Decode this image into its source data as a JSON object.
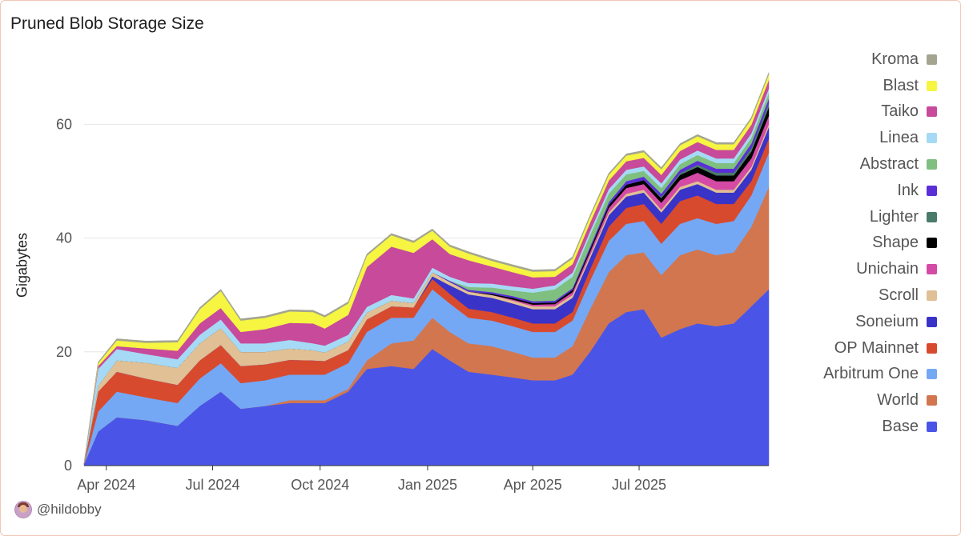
{
  "chart_data": {
    "type": "area",
    "stacked": true,
    "title": "Pruned Blob Storage Size",
    "ylabel": "Gigabytes",
    "xlabel": "",
    "ylim": [
      0,
      72
    ],
    "yticks": [
      0,
      20,
      40,
      60
    ],
    "xlim": [
      "2024-03-13",
      "2025-10-20"
    ],
    "xticks": [
      {
        "date": "2024-04-01",
        "label": "Apr 2024"
      },
      {
        "date": "2024-07-01",
        "label": "Jul 2024"
      },
      {
        "date": "2024-10-01",
        "label": "Oct 2024"
      },
      {
        "date": "2025-01-01",
        "label": "Jan 2025"
      },
      {
        "date": "2025-04-01",
        "label": "Apr 2025"
      },
      {
        "date": "2025-07-01",
        "label": "Jul 2025"
      }
    ],
    "grid": true,
    "legend_position": "right",
    "x": [
      "2024-03-13",
      "2024-03-25",
      "2024-04-10",
      "2024-05-05",
      "2024-06-01",
      "2024-06-20",
      "2024-07-08",
      "2024-07-25",
      "2024-08-15",
      "2024-09-05",
      "2024-09-25",
      "2024-10-05",
      "2024-10-25",
      "2024-11-10",
      "2024-12-01",
      "2024-12-20",
      "2025-01-05",
      "2025-01-20",
      "2025-02-05",
      "2025-02-25",
      "2025-03-15",
      "2025-04-01",
      "2025-04-20",
      "2025-05-05",
      "2025-05-20",
      "2025-06-05",
      "2025-06-20",
      "2025-07-05",
      "2025-07-20",
      "2025-08-05",
      "2025-08-20",
      "2025-09-05",
      "2025-09-20",
      "2025-10-05",
      "2025-10-20"
    ],
    "series": [
      {
        "name": "Base",
        "color": "#4a55e8",
        "values": [
          0.3,
          6,
          8.5,
          8,
          7,
          10.5,
          13,
          10,
          10.5,
          11,
          11,
          11,
          13,
          17,
          17.5,
          17,
          20.5,
          18.5,
          16.5,
          16,
          15.5,
          15,
          15,
          16,
          20,
          25,
          27,
          27.5,
          22.5,
          24,
          25,
          24.5,
          25,
          28,
          31
        ]
      },
      {
        "name": "World",
        "color": "#d2764f",
        "values": [
          0,
          0,
          0,
          0,
          0,
          0,
          0,
          0,
          0,
          0.5,
          0.5,
          0.5,
          0.5,
          1.5,
          4,
          5,
          5.5,
          5,
          5,
          5,
          4.5,
          4,
          4,
          5,
          7.5,
          9,
          10,
          10,
          11,
          13,
          13,
          12.5,
          12.5,
          14,
          18
        ]
      },
      {
        "name": "Arbitrum One",
        "color": "#74a8f5",
        "values": [
          0,
          3.5,
          4.5,
          4,
          4,
          4.8,
          5,
          4.5,
          4.5,
          4.5,
          4.5,
          4.5,
          4.5,
          5,
          4.5,
          4,
          5,
          5,
          4.5,
          4.5,
          4.5,
          4.5,
          4.5,
          4.5,
          5,
          5.5,
          5.5,
          5.5,
          5.5,
          5.5,
          5.5,
          5.5,
          5.5,
          5.5,
          6
        ]
      },
      {
        "name": "OP Mainnet",
        "color": "#d84a2e",
        "values": [
          0.1,
          3.5,
          3.5,
          3.3,
          3.2,
          3.2,
          3.2,
          3,
          2.8,
          2.6,
          2.5,
          2.4,
          2.3,
          2.2,
          2,
          1.8,
          1.8,
          1.7,
          1.6,
          1.5,
          1.5,
          1.5,
          1.5,
          1.5,
          2,
          2.5,
          2.8,
          3,
          3.5,
          4,
          4,
          3.5,
          3,
          2.5,
          2.5
        ]
      },
      {
        "name": "Soneium",
        "color": "#3a33c8",
        "values": [
          0,
          0,
          0,
          0,
          0,
          0,
          0,
          0,
          0,
          0,
          0,
          0,
          0,
          0,
          0,
          0,
          0.5,
          1.5,
          2.5,
          2.5,
          2.5,
          2.5,
          2.5,
          2.5,
          2,
          2,
          2,
          2,
          2,
          2,
          2,
          2,
          2,
          2,
          2
        ]
      },
      {
        "name": "Scroll",
        "color": "#e0c094",
        "values": [
          0,
          1,
          2,
          2.8,
          3,
          3,
          3,
          2.5,
          2.2,
          2,
          1.8,
          1.5,
          1.5,
          1.2,
          1,
          0.8,
          0.7,
          0.6,
          0.5,
          0.5,
          0.5,
          0.5,
          0.5,
          0.5,
          0.5,
          0.5,
          0.5,
          0.5,
          0.5,
          0.5,
          0.5,
          0.5,
          0.5,
          0.5,
          0.5
        ]
      },
      {
        "name": "Unichain",
        "color": "#d44aa5",
        "values": [
          0,
          0,
          0,
          0,
          0,
          0,
          0,
          0,
          0,
          0,
          0,
          0,
          0,
          0,
          0,
          0,
          0,
          0,
          0,
          0,
          0.2,
          0.3,
          0.4,
          0.5,
          0.6,
          0.8,
          1,
          1,
          1.2,
          1.2,
          1.5,
          1.5,
          1.5,
          1.5,
          1.5
        ]
      },
      {
        "name": "Shape",
        "color": "#000000",
        "values": [
          0,
          0,
          0,
          0,
          0,
          0,
          0,
          0,
          0,
          0,
          0,
          0,
          0,
          0,
          0,
          0,
          0,
          0,
          0,
          0.2,
          0.3,
          0.3,
          0.3,
          0.4,
          0.5,
          0.5,
          0.6,
          0.7,
          0.8,
          0.9,
          1,
          1,
          1,
          1.2,
          1.5
        ]
      },
      {
        "name": "Lighter",
        "color": "#4a7b6a",
        "values": [
          0,
          0,
          0,
          0,
          0,
          0,
          0,
          0,
          0,
          0,
          0,
          0,
          0,
          0,
          0,
          0,
          0,
          0,
          0,
          0,
          0,
          0,
          0,
          0,
          0,
          0,
          0,
          0,
          0.2,
          0.3,
          0.4,
          0.5,
          0.5,
          0.6,
          0.7
        ]
      },
      {
        "name": "Ink",
        "color": "#5a2fd8",
        "values": [
          0,
          0,
          0,
          0,
          0,
          0,
          0,
          0,
          0,
          0,
          0,
          0,
          0,
          0,
          0,
          0,
          0,
          0.2,
          0.3,
          0.3,
          0.3,
          0.3,
          0.3,
          0.3,
          0.4,
          0.5,
          0.6,
          0.6,
          0.6,
          0.6,
          0.7,
          0.7,
          0.7,
          0.8,
          0.8
        ]
      },
      {
        "name": "Abstract",
        "color": "#7fbf7f",
        "values": [
          0,
          0,
          0,
          0,
          0,
          0,
          0,
          0,
          0,
          0,
          0,
          0,
          0,
          0,
          0,
          0,
          0,
          0,
          0.5,
          0.8,
          1,
          1.5,
          2,
          2,
          2,
          1.5,
          1.2,
          1,
          1,
          1,
          1,
          1,
          1,
          1,
          1
        ]
      },
      {
        "name": "Linea",
        "color": "#a6d9f5",
        "values": [
          0,
          3,
          2,
          1.5,
          1.5,
          1.5,
          1.5,
          1.5,
          1.5,
          1.5,
          1.2,
          1.2,
          1.2,
          1,
          1,
          0.8,
          0.8,
          0.7,
          0.7,
          0.7,
          0.7,
          0.7,
          0.7,
          0.7,
          0.7,
          0.8,
          0.8,
          0.8,
          0.8,
          0.8,
          0.8,
          0.8,
          0.8,
          0.8,
          0.8
        ]
      },
      {
        "name": "Taiko",
        "color": "#c84a9a",
        "values": [
          0,
          0.5,
          0.5,
          1,
          1.5,
          2,
          2,
          2,
          2.5,
          3,
          3.5,
          3,
          3.5,
          7,
          8.5,
          8,
          5,
          4,
          4,
          3,
          2.5,
          2,
          1.5,
          1.5,
          1.5,
          1.5,
          1.5,
          1.5,
          1.5,
          1.5,
          1.5,
          1.5,
          1.5,
          1.5,
          1.5
        ]
      },
      {
        "name": "Blast",
        "color": "#f5f542",
        "values": [
          0,
          0.5,
          1,
          1,
          1.5,
          2.5,
          3,
          2,
          2,
          2,
          2,
          2,
          2,
          2,
          2,
          1.8,
          1.5,
          1.3,
          1.2,
          1,
          1,
          1,
          1,
          1,
          1,
          1,
          1,
          1,
          1,
          1,
          1,
          1,
          1,
          1,
          1
        ]
      },
      {
        "name": "Kroma",
        "color": "#a3a58f",
        "values": [
          0,
          0.2,
          0.3,
          0.3,
          0.3,
          0.3,
          0.3,
          0.3,
          0.3,
          0.3,
          0.3,
          0.3,
          0.3,
          0.3,
          0.3,
          0.3,
          0.3,
          0.3,
          0.3,
          0.3,
          0.3,
          0.3,
          0.3,
          0.3,
          0.3,
          0.3,
          0.3,
          0.3,
          0.3,
          0.3,
          0.3,
          0.3,
          0.3,
          0.3,
          0.3
        ]
      }
    ]
  },
  "credit": {
    "handle": "@hildobby"
  }
}
